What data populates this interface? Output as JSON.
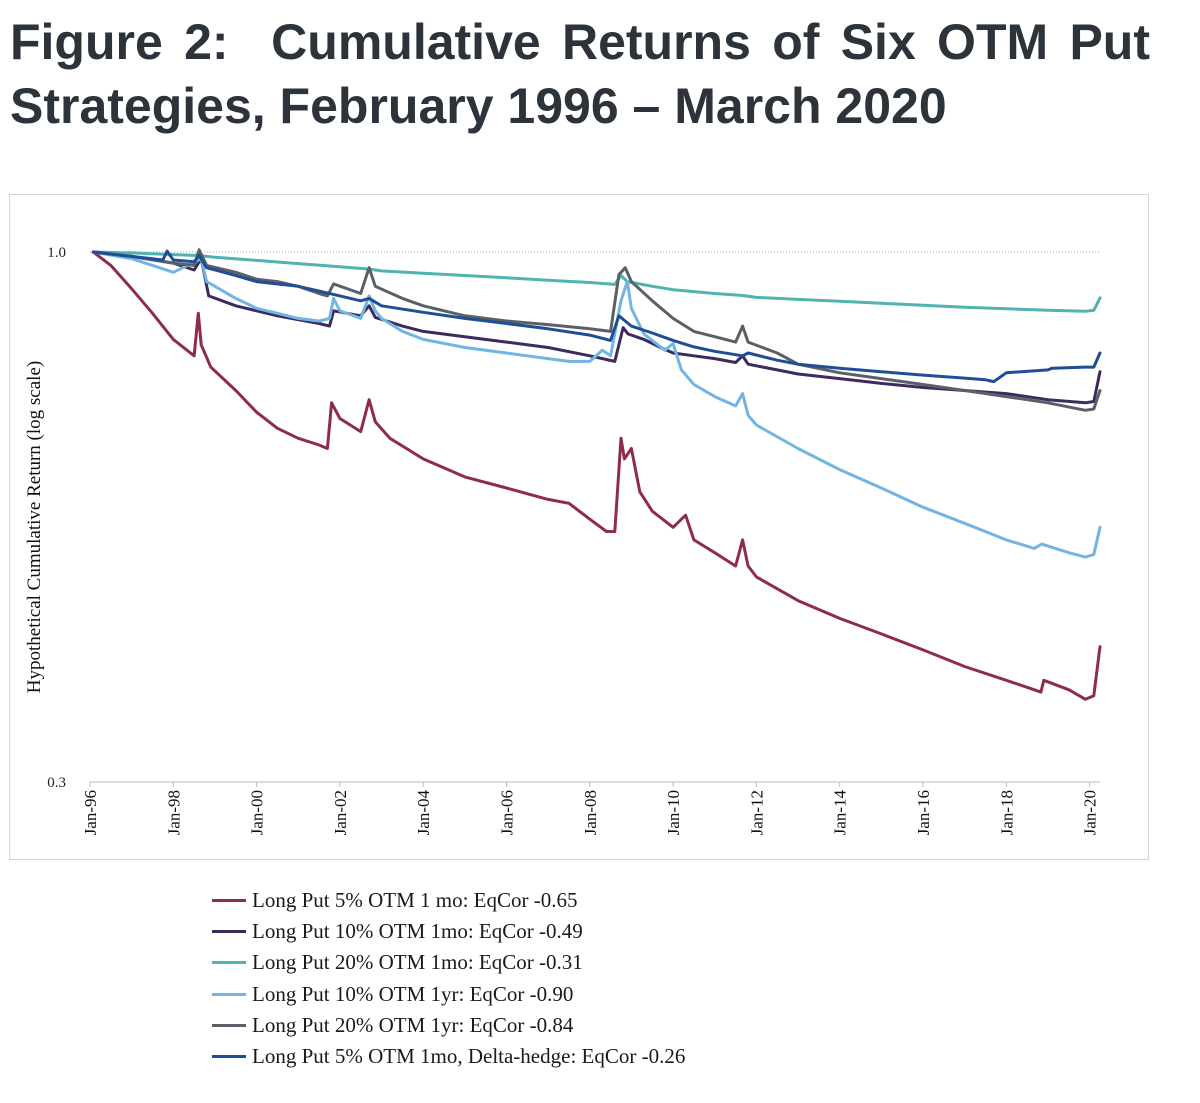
{
  "figure": {
    "label": "Figure 2:",
    "title": "Cumulative Returns of Six OTM Put Strategies, February 1996 – March 2020"
  },
  "chart_data": {
    "type": "line",
    "title": "Cumulative Returns of Six OTM Put Strategies, February 1996 – March 2020",
    "xlabel": "",
    "ylabel": "Hypothetical Cumulative Return (log scale)",
    "yscale": "log",
    "ylim": [
      0.3,
      1.0
    ],
    "xlim": [
      1996.0,
      2020.25
    ],
    "yticks": [
      {
        "value": 1.0,
        "label": "1.0"
      },
      {
        "value": 0.3,
        "label": "0.3"
      }
    ],
    "xticks": [
      {
        "value": 1996,
        "label": "Jan-96"
      },
      {
        "value": 1998,
        "label": "Jan-98"
      },
      {
        "value": 2000,
        "label": "Jan-00"
      },
      {
        "value": 2002,
        "label": "Jan-02"
      },
      {
        "value": 2004,
        "label": "Jan-04"
      },
      {
        "value": 2006,
        "label": "Jan-06"
      },
      {
        "value": 2008,
        "label": "Jan-08"
      },
      {
        "value": 2010,
        "label": "Jan-10"
      },
      {
        "value": 2012,
        "label": "Jan-12"
      },
      {
        "value": 2014,
        "label": "Jan-14"
      },
      {
        "value": 2016,
        "label": "Jan-16"
      },
      {
        "value": 2018,
        "label": "Jan-18"
      },
      {
        "value": 2020,
        "label": "Jan-20"
      }
    ],
    "reference_line": {
      "value": 1.0,
      "style": "dotted"
    },
    "legend_position": "bottom",
    "series": [
      {
        "name": "Long Put 5% OTM 1 mo: EqCor -0.65",
        "color": "#8e2b52",
        "x": [
          1996.08,
          1996.5,
          1997.0,
          1997.5,
          1998.0,
          1998.5,
          1998.6,
          1998.67,
          1998.9,
          1999.5,
          2000.0,
          2000.5,
          2001.0,
          2001.5,
          2001.7,
          2001.8,
          2002.0,
          2002.5,
          2002.7,
          2002.85,
          2003.2,
          2003.6,
          2004.0,
          2005.0,
          2006.0,
          2007.0,
          2007.5,
          2008.0,
          2008.4,
          2008.6,
          2008.75,
          2008.83,
          2009.0,
          2009.2,
          2009.5,
          2010.0,
          2010.3,
          2010.5,
          2011.0,
          2011.5,
          2011.67,
          2011.8,
          2012.0,
          2013.0,
          2014.0,
          2015.0,
          2016.0,
          2017.0,
          2018.0,
          2018.5,
          2018.83,
          2018.9,
          2019.5,
          2019.9,
          2020.1,
          2020.25
        ],
        "values": [
          1.0,
          0.97,
          0.92,
          0.87,
          0.82,
          0.79,
          0.87,
          0.81,
          0.77,
          0.73,
          0.695,
          0.67,
          0.655,
          0.645,
          0.64,
          0.71,
          0.685,
          0.665,
          0.715,
          0.68,
          0.655,
          0.64,
          0.625,
          0.6,
          0.585,
          0.57,
          0.565,
          0.545,
          0.53,
          0.53,
          0.655,
          0.625,
          0.64,
          0.58,
          0.555,
          0.535,
          0.55,
          0.52,
          0.505,
          0.49,
          0.52,
          0.49,
          0.478,
          0.453,
          0.435,
          0.42,
          0.405,
          0.39,
          0.378,
          0.372,
          0.368,
          0.378,
          0.37,
          0.362,
          0.365,
          0.408
        ]
      },
      {
        "name": "Long Put 10% OTM 1mo: EqCor -0.49",
        "color": "#3d2a5e",
        "x": [
          1996.08,
          1997.0,
          1998.0,
          1998.5,
          1998.67,
          1998.85,
          1999.5,
          2000.5,
          2001.5,
          2001.75,
          2001.85,
          2002.5,
          2002.7,
          2002.85,
          2003.5,
          2004.0,
          2005.0,
          2006.0,
          2007.0,
          2008.0,
          2008.6,
          2008.8,
          2008.92,
          2009.3,
          2009.7,
          2010.0,
          2010.5,
          2011.0,
          2011.5,
          2011.67,
          2011.8,
          2012.5,
          2013.0,
          2014.0,
          2015.0,
          2016.0,
          2017.0,
          2018.0,
          2019.0,
          2019.9,
          2020.1,
          2020.25
        ],
        "values": [
          1.0,
          0.99,
          0.975,
          0.96,
          0.985,
          0.905,
          0.885,
          0.865,
          0.85,
          0.845,
          0.875,
          0.865,
          0.885,
          0.862,
          0.845,
          0.835,
          0.825,
          0.815,
          0.805,
          0.79,
          0.78,
          0.842,
          0.83,
          0.82,
          0.805,
          0.795,
          0.79,
          0.785,
          0.778,
          0.79,
          0.775,
          0.765,
          0.758,
          0.75,
          0.742,
          0.735,
          0.73,
          0.725,
          0.715,
          0.71,
          0.712,
          0.762
        ]
      },
      {
        "name": "Long Put 20% OTM 1mo: EqCor -0.31",
        "color": "#4fb3b0",
        "x": [
          1996.08,
          1997.0,
          1998.0,
          1998.6,
          1999.0,
          2000.0,
          2001.0,
          2002.0,
          2002.7,
          2003.0,
          2004.0,
          2005.0,
          2006.0,
          2007.0,
          2008.0,
          2008.6,
          2008.75,
          2008.9,
          2009.5,
          2010.0,
          2011.0,
          2011.67,
          2012.0,
          2013.0,
          2014.0,
          2015.0,
          2016.0,
          2017.0,
          2018.0,
          2019.0,
          2019.9,
          2020.1,
          2020.25
        ],
        "values": [
          1.0,
          0.998,
          0.994,
          0.992,
          0.988,
          0.981,
          0.974,
          0.967,
          0.962,
          0.958,
          0.953,
          0.948,
          0.943,
          0.938,
          0.933,
          0.929,
          0.948,
          0.935,
          0.925,
          0.918,
          0.91,
          0.906,
          0.902,
          0.898,
          0.894,
          0.89,
          0.886,
          0.882,
          0.879,
          0.876,
          0.874,
          0.876,
          0.901
        ]
      },
      {
        "name": "Long Put 10% OTM 1yr: EqCor -0.90",
        "color": "#72b5e3",
        "x": [
          1996.08,
          1997.0,
          1997.5,
          1998.0,
          1998.67,
          1998.8,
          1999.5,
          2000.0,
          2000.5,
          2001.0,
          2001.5,
          2001.75,
          2001.85,
          2002.0,
          2002.5,
          2002.7,
          2002.85,
          2003.0,
          2003.5,
          2004.0,
          2005.0,
          2006.0,
          2007.0,
          2007.5,
          2008.0,
          2008.3,
          2008.5,
          2008.75,
          2008.9,
          2009.0,
          2009.3,
          2009.8,
          2010.0,
          2010.2,
          2010.5,
          2011.0,
          2011.5,
          2011.67,
          2011.8,
          2012.0,
          2013.0,
          2014.0,
          2015.0,
          2016.0,
          2017.0,
          2018.0,
          2018.67,
          2018.85,
          2019.5,
          2019.9,
          2020.1,
          2020.25
        ],
        "values": [
          1.0,
          0.985,
          0.97,
          0.955,
          0.985,
          0.935,
          0.9,
          0.88,
          0.87,
          0.86,
          0.855,
          0.86,
          0.9,
          0.875,
          0.86,
          0.905,
          0.875,
          0.86,
          0.835,
          0.82,
          0.805,
          0.795,
          0.785,
          0.78,
          0.78,
          0.8,
          0.79,
          0.895,
          0.935,
          0.88,
          0.83,
          0.8,
          0.812,
          0.765,
          0.74,
          0.72,
          0.705,
          0.725,
          0.69,
          0.675,
          0.64,
          0.61,
          0.585,
          0.56,
          0.54,
          0.52,
          0.51,
          0.515,
          0.505,
          0.5,
          0.503,
          0.535
        ]
      },
      {
        "name": "Long Put 20% OTM 1yr: EqCor -0.84",
        "color": "#5b6068",
        "x": [
          1996.08,
          1997.0,
          1998.0,
          1998.5,
          1998.62,
          1998.8,
          1999.5,
          2000.0,
          2000.5,
          2001.0,
          2001.5,
          2001.7,
          2001.85,
          2002.5,
          2002.7,
          2002.85,
          2003.5,
          2004.0,
          2005.0,
          2006.0,
          2007.0,
          2008.0,
          2008.5,
          2008.7,
          2008.85,
          2009.0,
          2009.5,
          2010.0,
          2010.5,
          2011.0,
          2011.5,
          2011.67,
          2011.8,
          2012.5,
          2013.0,
          2014.0,
          2015.0,
          2016.0,
          2017.0,
          2018.0,
          2019.0,
          2019.9,
          2020.1,
          2020.25
        ],
        "values": [
          1.0,
          0.99,
          0.975,
          0.97,
          1.005,
          0.97,
          0.955,
          0.94,
          0.935,
          0.925,
          0.91,
          0.905,
          0.93,
          0.91,
          0.965,
          0.925,
          0.9,
          0.885,
          0.865,
          0.855,
          0.848,
          0.84,
          0.835,
          0.95,
          0.965,
          0.935,
          0.895,
          0.86,
          0.835,
          0.825,
          0.815,
          0.845,
          0.815,
          0.795,
          0.775,
          0.76,
          0.75,
          0.74,
          0.73,
          0.72,
          0.71,
          0.698,
          0.7,
          0.73
        ]
      },
      {
        "name": "Long Put 5% OTM 1mo, Delta-hedge: EqCor -0.26",
        "color": "#1f4e96",
        "x": [
          1996.08,
          1997.0,
          1997.75,
          1997.85,
          1998.0,
          1998.5,
          1998.62,
          1998.8,
          1999.5,
          2000.0,
          2001.0,
          2001.5,
          2002.0,
          2002.5,
          2002.7,
          2003.0,
          2004.0,
          2005.0,
          2006.0,
          2007.0,
          2008.0,
          2008.5,
          2008.7,
          2008.85,
          2009.0,
          2009.5,
          2010.0,
          2010.5,
          2011.0,
          2011.67,
          2011.8,
          2012.5,
          2013.0,
          2014.0,
          2015.0,
          2016.0,
          2017.0,
          2017.5,
          2017.7,
          2018.0,
          2019.0,
          2019.1,
          2019.9,
          2020.1,
          2020.25
        ],
        "values": [
          1.0,
          0.99,
          0.982,
          1.002,
          0.982,
          0.978,
          0.992,
          0.965,
          0.948,
          0.935,
          0.925,
          0.915,
          0.905,
          0.895,
          0.9,
          0.885,
          0.872,
          0.86,
          0.85,
          0.84,
          0.828,
          0.818,
          0.865,
          0.855,
          0.845,
          0.832,
          0.818,
          0.806,
          0.798,
          0.79,
          0.795,
          0.782,
          0.775,
          0.768,
          0.762,
          0.756,
          0.751,
          0.748,
          0.745,
          0.76,
          0.765,
          0.768,
          0.77,
          0.77,
          0.795
        ]
      }
    ]
  }
}
